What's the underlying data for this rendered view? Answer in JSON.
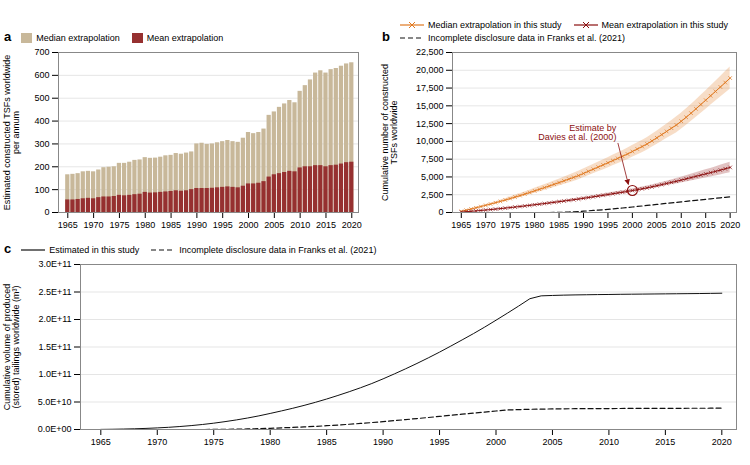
{
  "chart_data": [
    {
      "type": "bar",
      "title": "a",
      "x": [
        1965,
        1966,
        1967,
        1968,
        1969,
        1970,
        1971,
        1972,
        1973,
        1974,
        1975,
        1976,
        1977,
        1978,
        1979,
        1980,
        1981,
        1982,
        1983,
        1984,
        1985,
        1986,
        1987,
        1988,
        1989,
        1990,
        1991,
        1992,
        1993,
        1994,
        1995,
        1996,
        1997,
        1998,
        1999,
        2000,
        2001,
        2002,
        2003,
        2004,
        2005,
        2006,
        2007,
        2008,
        2009,
        2010,
        2011,
        2012,
        2013,
        2014,
        2015,
        2016,
        2017,
        2018,
        2019,
        2020
      ],
      "series": [
        {
          "name": "Median extrapolation",
          "color": "#c8b89a",
          "values": [
            165,
            167,
            170,
            178,
            180,
            178,
            186,
            196,
            198,
            200,
            215,
            215,
            220,
            228,
            230,
            240,
            237,
            238,
            242,
            248,
            250,
            258,
            255,
            260,
            265,
            300,
            303,
            298,
            300,
            305,
            310,
            315,
            310,
            307,
            325,
            350,
            345,
            350,
            365,
            425,
            440,
            460,
            475,
            490,
            480,
            530,
            555,
            580,
            610,
            620,
            610,
            625,
            630,
            640,
            650,
            655
          ]
        },
        {
          "name": "Mean extrapolation",
          "color": "#963030",
          "values": [
            55,
            55,
            57,
            60,
            62,
            60,
            65,
            68,
            68,
            70,
            75,
            73,
            75,
            78,
            80,
            88,
            85,
            86,
            88,
            90,
            92,
            95,
            93,
            95,
            100,
            105,
            105,
            105,
            106,
            108,
            110,
            112,
            110,
            108,
            115,
            125,
            125,
            128,
            135,
            155,
            165,
            170,
            175,
            180,
            178,
            195,
            200,
            200,
            205,
            205,
            200,
            205,
            207,
            212,
            218,
            220
          ]
        }
      ],
      "stacked": false,
      "xlim": [
        1963.2,
        2021.3
      ],
      "xticks": [
        1965,
        1970,
        1975,
        1980,
        1985,
        1990,
        1995,
        2000,
        2005,
        2010,
        2015,
        2020
      ],
      "ylim": [
        0,
        700
      ],
      "yticks": [
        0,
        100,
        200,
        300,
        400,
        500,
        600,
        700
      ],
      "ylabel": "Estimated constructed TSFs worldwide\nper annum",
      "grid": true,
      "legend": "top"
    },
    {
      "type": "line",
      "title": "b",
      "x": [
        1965,
        1966,
        1967,
        1968,
        1969,
        1970,
        1971,
        1972,
        1973,
        1974,
        1975,
        1976,
        1977,
        1978,
        1979,
        1980,
        1981,
        1982,
        1983,
        1984,
        1985,
        1986,
        1987,
        1988,
        1989,
        1990,
        1991,
        1992,
        1993,
        1994,
        1995,
        1996,
        1997,
        1998,
        1999,
        2000,
        2001,
        2002,
        2003,
        2004,
        2005,
        2006,
        2007,
        2008,
        2009,
        2010,
        2011,
        2012,
        2013,
        2014,
        2015,
        2016,
        2017,
        2018,
        2019,
        2020
      ],
      "series": [
        {
          "name": "Median extrapolation in this study",
          "color": "#e07820",
          "marker": "x",
          "line_style": "solid",
          "values": [
            162.5,
            325.5,
            490,
            659.5,
            832,
            1006,
            1184,
            1370.5,
            1561,
            1753,
            1958,
            2163,
            2375,
            2593,
            2813,
            3042.5,
            3268.5,
            3497.5,
            3729.5,
            3967.5,
            4207.5,
            4454,
            4697,
            4943,
            5194.5,
            5492.5,
            5792,
            6090.5,
            6389,
            6690,
            6992,
            7302.5,
            7609,
            7910.5,
            8227,
            8581,
            8927,
            9278.5,
            9637,
            10065,
            10502,
            10949.5,
            11401,
            11856.5,
            12302,
            12836.5,
            13391,
            13969,
            14572,
            15187,
            15796.5,
            16413.5,
            17028.5,
            17649,
            18278,
            18907
          ],
          "lower": [
            150,
            298,
            446,
            594,
            745,
            898,
            1055,
            1218,
            1386,
            1555,
            1735,
            1913,
            2101,
            2293,
            2487,
            2690,
            2888,
            3090,
            3296,
            3508,
            3722,
            3942,
            4158,
            4374,
            4596,
            4876,
            5155,
            5435,
            5715,
            5994,
            6273,
            6562,
            6848,
            7126,
            7416,
            7756,
            8084,
            8415,
            8748,
            9160,
            9575,
            9990,
            10397,
            10797,
            11189,
            11709,
            12240,
            12787,
            13350,
            13924,
            14498,
            15072,
            15637,
            16202,
            16773,
            17339
          ],
          "upper": [
            175,
            353,
            534,
            725,
            919,
            1114,
            1313,
            1523,
            1736,
            1951,
            2181,
            2413,
            2649,
            2893,
            3139,
            3395,
            3649,
            3905,
            4163,
            4427,
            4693,
            4966,
            5236,
            5512,
            5793,
            6109,
            6429,
            6746,
            7063,
            7386,
            7711,
            8043,
            8370,
            8695,
            9038,
            9406,
            9770,
            10142,
            10526,
            10970,
            11429,
            11909,
            12405,
            12916,
            13415,
            13964,
            14542,
            15151,
            15794,
            16450,
            17095,
            17755,
            18420,
            19096,
            19783,
            20475
          ]
        },
        {
          "name": "Mean extrapolation in this study",
          "color": "#8b1010",
          "marker": "x",
          "line_style": "solid",
          "values": [
            55,
            110,
            163.5,
            220.5,
            284,
            344,
            408,
            476.5,
            545.5,
            615.5,
            690.5,
            763,
            838,
            916,
            996.5,
            1083.5,
            1167,
            1251.5,
            1337.5,
            1426,
            1517,
            1609,
            1699.5,
            1791.5,
            1888.5,
            1991.5,
            2095.5,
            2201.5,
            2307,
            2414.5,
            2523,
            2634.5,
            2742.5,
            2847,
            2960,
            3084,
            3206.5,
            3331.5,
            3461.5,
            3611,
            3766,
            3922.5,
            4079.5,
            4236.5,
            4390,
            4561,
            4735,
            4909.5,
            5085,
            5260.5,
            5431.5,
            5605.5,
            5781.5,
            5961.5,
            6148.5,
            6336.5
          ],
          "lower": [
            48,
            95,
            142,
            192,
            252,
            309,
            368,
            432,
            497,
            562,
            633,
            701,
            771,
            844,
            920,
            1002,
            1079,
            1156,
            1234,
            1315,
            1398,
            1482,
            1566,
            1651,
            1740,
            1836,
            1933,
            2032,
            2130,
            2231,
            2333,
            2438,
            2540,
            2638,
            2743,
            2860,
            2973,
            3089,
            3210,
            3348,
            3487,
            3625,
            3759,
            3890,
            4016,
            4158,
            4301,
            4445,
            4587,
            4728,
            4866,
            5006,
            5147,
            5290,
            5440,
            5590
          ],
          "upper": [
            62,
            125,
            185,
            249,
            316,
            379,
            448,
            521,
            594,
            669,
            748,
            825,
            905,
            988,
            1073,
            1165,
            1255,
            1347,
            1441,
            1537,
            1636,
            1736,
            1833,
            1932,
            2037,
            2147,
            2258,
            2371,
            2484,
            2598,
            2713,
            2831,
            2945,
            3056,
            3177,
            3308,
            3440,
            3574,
            3713,
            3874,
            4045,
            4220,
            4400,
            4583,
            4764,
            4964,
            5169,
            5374,
            5583,
            5793,
            5997,
            6205,
            6416,
            6633,
            6857,
            7083
          ]
        },
        {
          "name": "Incomplete disclosure data in Franks et al. (2021)",
          "color": "#111111",
          "line_style": "dashed",
          "values": [
            0,
            0,
            0,
            0,
            0,
            0,
            0,
            0,
            0,
            0,
            0,
            0,
            0,
            0,
            0,
            0,
            0,
            0,
            0,
            10,
            22,
            40,
            65,
            95,
            132,
            180,
            235,
            285,
            333,
            390,
            450,
            515,
            575,
            635,
            705,
            775,
            848,
            918,
            990,
            1062,
            1135,
            1208,
            1280,
            1353,
            1425,
            1498,
            1570,
            1642,
            1714,
            1785,
            1855,
            1925,
            1995,
            2065,
            2135,
            2205
          ]
        }
      ],
      "annotations": [
        {
          "text": "Estimate by\nDavies et al. (2000)",
          "x": 2000,
          "y": 3100,
          "color": "#8b1010"
        }
      ],
      "xlim": [
        1963.2,
        2021.3
      ],
      "xticks": [
        1965,
        1970,
        1975,
        1980,
        1985,
        1990,
        1995,
        2000,
        2005,
        2010,
        2015,
        2020
      ],
      "ylim": [
        0,
        22500
      ],
      "yticks": [
        0,
        {
          "value": 2500,
          "label": "2,500"
        },
        {
          "value": 5000,
          "label": "5,000"
        },
        {
          "value": 7500,
          "label": "7,500"
        },
        {
          "value": 10000,
          "label": "10,000"
        },
        {
          "value": 12500,
          "label": "12,500"
        },
        {
          "value": 15000,
          "label": "15,000"
        },
        {
          "value": 17500,
          "label": "17,500"
        },
        {
          "value": 20000,
          "label": "20,000"
        },
        {
          "value": 22500,
          "label": "22,500"
        }
      ],
      "ylabel": "Cumulative number of constructed\nTSFs worldwide",
      "grid": true,
      "legend": "top"
    },
    {
      "type": "line",
      "title": "c",
      "x": [
        1965,
        1966,
        1967,
        1968,
        1969,
        1970,
        1971,
        1972,
        1973,
        1974,
        1975,
        1976,
        1977,
        1978,
        1979,
        1980,
        1981,
        1982,
        1983,
        1984,
        1985,
        1986,
        1987,
        1988,
        1989,
        1990,
        1991,
        1992,
        1993,
        1994,
        1995,
        1996,
        1997,
        1998,
        1999,
        2000,
        2001,
        2002,
        2003,
        2004,
        2005,
        2006,
        2007,
        2008,
        2009,
        2010,
        2011,
        2012,
        2013,
        2014,
        2015,
        2016,
        2017,
        2018,
        2019,
        2020
      ],
      "series": [
        {
          "name": "Estimated in this study",
          "color": "#111111",
          "line_style": "solid",
          "values": [
            200000000.0,
            450000000.0,
            800000000.0,
            1300000000.0,
            2000000000.0,
            2900000000.0,
            4000000000.0,
            5400000000.0,
            7100000000.0,
            9100000000.0,
            11500000000.0,
            14300000000.0,
            17400000000.0,
            20900000000.0,
            24800000000.0,
            29200000000.0,
            33800000000.0,
            38600000000.0,
            43800000000.0,
            49400000000.0,
            55400000000.0,
            61900000000.0,
            68700000000.0,
            75900000000.0,
            83600000000.0,
            92100000000.0,
            101100000000.0,
            110400000000.0,
            120100000000.0,
            130200000000.0,
            140700000000.0,
            151700000000.0,
            162900000000.0,
            174300000000.0,
            186200000000.0,
            198700000000.0,
            211400000000.0,
            224400000000.0,
            237800000000.0,
            243000000000.0,
            243700000000.0,
            244300000000.0,
            244700000000.0,
            245000000000.0,
            245300000000.0,
            245500000000.0,
            245800000000.0,
            246000000000.0,
            246200000000.0,
            246400000000.0,
            246600000000.0,
            246800000000.0,
            247000000000.0,
            247200000000.0,
            247500000000.0,
            247800000000.0
          ]
        },
        {
          "name": "Incomplete disclosure data in Franks et al. (2021)",
          "color": "#111111",
          "line_style": "dashed",
          "values": [
            0,
            0,
            0,
            0,
            0,
            0,
            0,
            0,
            0,
            0,
            100000000.0,
            300000000.0,
            600000000.0,
            1000000000.0,
            1500000000.0,
            2200000000.0,
            3000000000.0,
            3800000000.0,
            4700000000.0,
            5700000000.0,
            6900000000.0,
            8100000000.0,
            9500000000.0,
            11000000000.0,
            12600000000.0,
            14300000000.0,
            16100000000.0,
            18000000000.0,
            19900000000.0,
            21800000000.0,
            23800000000.0,
            25800000000.0,
            27800000000.0,
            29700000000.0,
            31700000000.0,
            33600000000.0,
            35500000000.0,
            36200000000.0,
            36700000000.0,
            37100000000.0,
            37400000000.0,
            37600000000.0,
            37800000000.0,
            37900000000.0,
            38000000000.0,
            38100000000.0,
            38200000000.0,
            38300000000.0,
            38400000000.0,
            38400000000.0,
            38500000000.0,
            38500000000.0,
            38600000000.0,
            38600000000.0,
            38700000000.0,
            38700000000.0
          ]
        }
      ],
      "xlim": [
        1963.2,
        2021.3
      ],
      "xticks": [
        1965,
        1970,
        1975,
        1980,
        1985,
        1990,
        1995,
        2000,
        2005,
        2010,
        2015,
        2020
      ],
      "ylim": [
        0,
        300000000000.0
      ],
      "yticks": [
        {
          "value": 0,
          "label": "0.0E+00"
        },
        {
          "value": 50000000000.0,
          "label": "5.0E+10"
        },
        {
          "value": 100000000000.0,
          "label": "1.0E+11"
        },
        {
          "value": 150000000000.0,
          "label": "1.5E+11"
        },
        {
          "value": 200000000000.0,
          "label": "2.0E+11"
        },
        {
          "value": 250000000000.0,
          "label": "2.5E+11"
        },
        {
          "value": 300000000000.0,
          "label": "3.0E+11"
        }
      ],
      "ylabel": "Cumulative volume of produced\n(stored) tailings worldwide (m³)",
      "grid": true,
      "legend": "top"
    }
  ]
}
